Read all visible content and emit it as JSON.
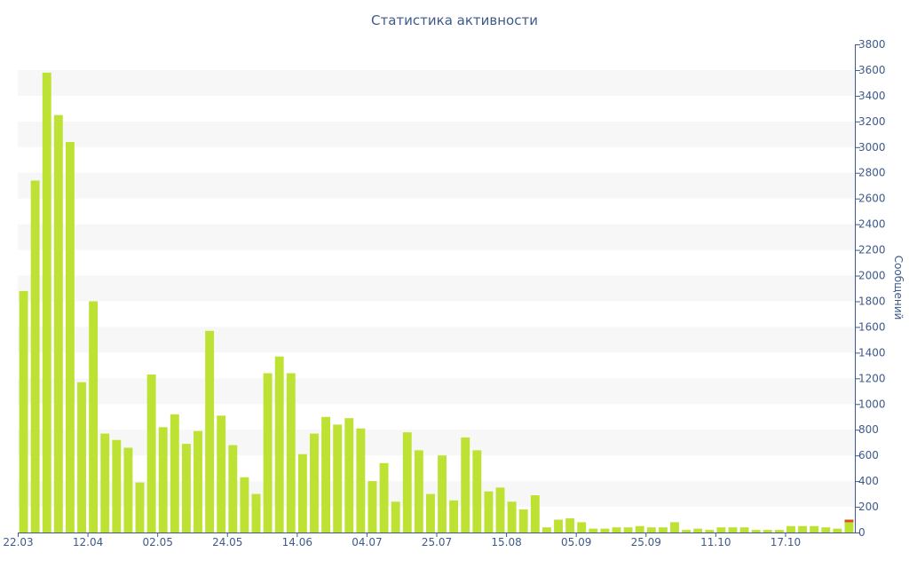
{
  "chart_data": {
    "type": "bar",
    "title": "Статистика активности",
    "xlabel": "",
    "ylabel": "Сообщений",
    "ylim": [
      0,
      3800
    ],
    "y_ticks": [
      0,
      200,
      400,
      600,
      800,
      1000,
      1200,
      1400,
      1600,
      1800,
      2000,
      2200,
      2400,
      2600,
      2800,
      3000,
      3200,
      3400,
      3600,
      3800
    ],
    "y_axis_position": "right",
    "grid": "alternating horizontal bands",
    "x_tick_labels": [
      {
        "label": "22.03",
        "index": 0
      },
      {
        "label": "12.04",
        "index": 6
      },
      {
        "label": "02.05",
        "index": 12
      },
      {
        "label": "24.05",
        "index": 18
      },
      {
        "label": "14.06",
        "index": 24
      },
      {
        "label": "04.07",
        "index": 30
      },
      {
        "label": "25.07",
        "index": 36
      },
      {
        "label": "15.08",
        "index": 42
      },
      {
        "label": "05.09",
        "index": 48
      },
      {
        "label": "25.09",
        "index": 54
      },
      {
        "label": "11.10",
        "index": 60
      },
      {
        "label": "17.10",
        "index": 66
      }
    ],
    "values": [
      1880,
      2740,
      3580,
      3250,
      3040,
      1170,
      1800,
      770,
      720,
      660,
      390,
      1230,
      820,
      920,
      690,
      790,
      1570,
      910,
      680,
      430,
      300,
      1240,
      1370,
      1240,
      610,
      770,
      900,
      840,
      890,
      810,
      400,
      540,
      240,
      780,
      640,
      300,
      600,
      250,
      740,
      640,
      320,
      350,
      240,
      180,
      290,
      40,
      100,
      110,
      80,
      30,
      30,
      40,
      40,
      50,
      40,
      40,
      80,
      20,
      30,
      20,
      40,
      40,
      40,
      20,
      20,
      20,
      50,
      50,
      50,
      40,
      30,
      100
    ],
    "highlight": {
      "index": 71,
      "value": 100,
      "top_segment": 20,
      "color": "#e04a24"
    },
    "colors": {
      "bar": "#bde233",
      "band": "#f7f7f7",
      "text": "#3e5a8a",
      "axis": "#3e5a8a"
    }
  }
}
